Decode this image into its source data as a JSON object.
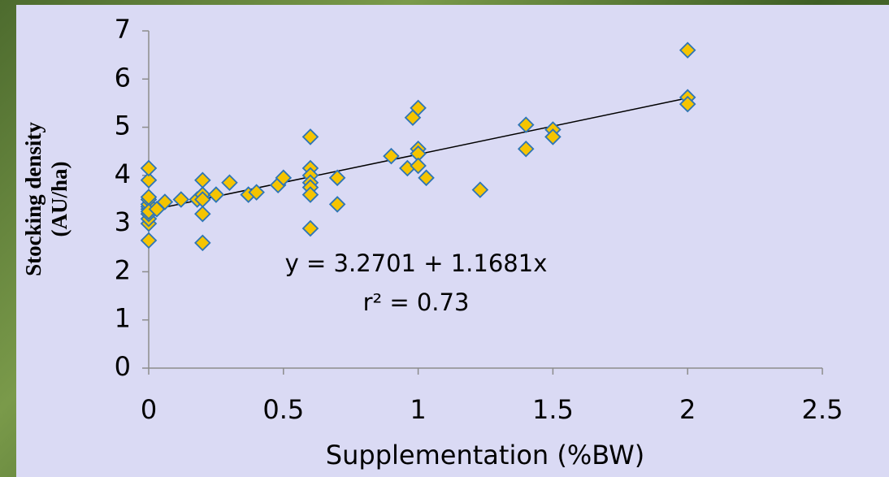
{
  "chart_data": {
    "type": "scatter",
    "x_label": "Supplementation  (%BW)",
    "y_label": [
      "Stocking density",
      "(AU/ha)"
    ],
    "annotations": [
      "y = 3.2701 + 1.1681x",
      "r² = 0.73"
    ],
    "xlim": [
      0,
      2.5
    ],
    "xticks": [
      0,
      0.5,
      1,
      1.5,
      2,
      2.5
    ],
    "ylim": [
      0,
      7
    ],
    "yticks": [
      0,
      1,
      2,
      3,
      4,
      5,
      6,
      7
    ],
    "grid": false,
    "series": [
      {
        "color": "#f5c400",
        "edge_color": "#2e75b6",
        "x": [
          0,
          0,
          0,
          0,
          0,
          0,
          0,
          0,
          0,
          0,
          0,
          0,
          0.03,
          0.06,
          0.12,
          0.18,
          0.2,
          0.2,
          0.2,
          0.2,
          0.2,
          0.25,
          0.3,
          0.37,
          0.4,
          0.48,
          0.5,
          0.6,
          0.6,
          0.6,
          0.6,
          0.6,
          0.6,
          0.6,
          0.7,
          0.7,
          0.9,
          0.96,
          0.98,
          1.0,
          1.0,
          1.0,
          1.0,
          1.03,
          1.23,
          1.4,
          1.4,
          1.5,
          1.5,
          2.0,
          2.0,
          2.0
        ],
        "values": [
          3.0,
          3.1,
          3.2,
          3.3,
          3.35,
          3.4,
          3.5,
          3.55,
          3.9,
          4.15,
          2.65,
          3.25,
          3.3,
          3.45,
          3.5,
          3.5,
          3.9,
          3.6,
          3.5,
          3.2,
          2.6,
          3.6,
          3.85,
          3.6,
          3.65,
          3.8,
          3.95,
          4.8,
          4.15,
          4.0,
          3.85,
          3.75,
          3.6,
          2.9,
          3.95,
          3.4,
          4.4,
          4.15,
          5.2,
          5.4,
          4.55,
          4.45,
          4.2,
          3.95,
          3.7,
          5.05,
          4.55,
          4.95,
          4.8,
          6.6,
          5.62,
          5.48
        ]
      }
    ],
    "trendline": {
      "intercept": 3.2701,
      "slope": 1.1681,
      "x": [
        0,
        2
      ],
      "color": "#000000"
    }
  }
}
